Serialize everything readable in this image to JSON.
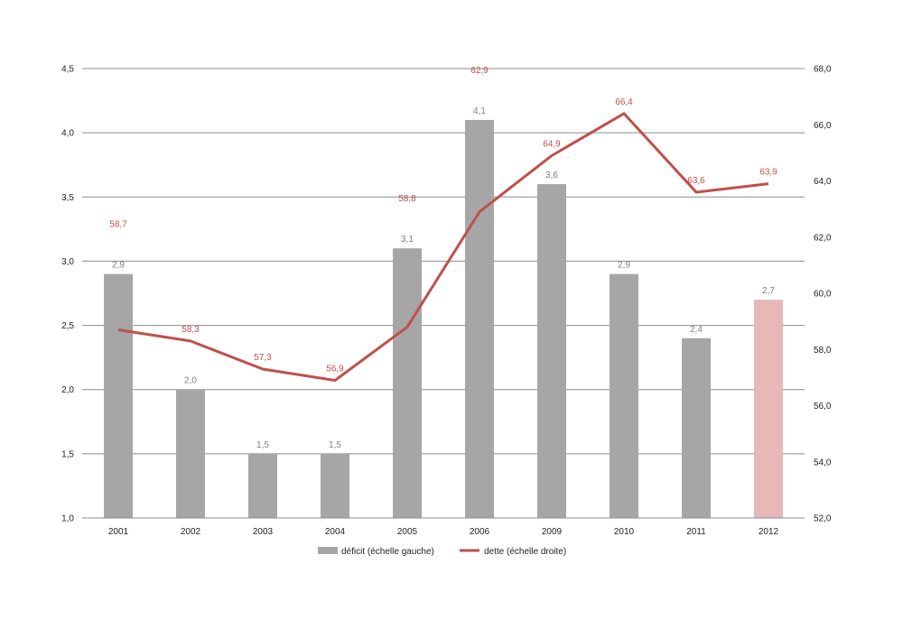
{
  "chart_data": {
    "type": "bar",
    "categories": [
      "2001",
      "2002",
      "2003",
      "2004",
      "2005",
      "2006",
      "2009",
      "2010",
      "2011",
      "2012"
    ],
    "series": [
      {
        "name": "déficit (échelle gauche)",
        "type": "bar",
        "axis": "left",
        "values": [
          2.9,
          2.0,
          1.5,
          1.5,
          3.1,
          4.1,
          3.6,
          2.9,
          2.4,
          2.7
        ],
        "labels": [
          "2,9",
          "2,0",
          "1,5",
          "1,5",
          "3,1",
          "4,1",
          "3,6",
          "2,9",
          "2,4",
          "2,7"
        ],
        "color": "#a6a6a6",
        "highlight_color": "#e6b8b7",
        "highlight_index": 9
      },
      {
        "name": "dette (échelle droite)",
        "type": "line",
        "axis": "right",
        "values": [
          58.7,
          58.3,
          57.3,
          56.9,
          58.8,
          62.9,
          64.9,
          66.4,
          63.6,
          63.9
        ],
        "labels": [
          "58,7",
          "58,3",
          "57,3",
          "56,9",
          "58,8",
          "62,9",
          "64,9",
          "66,4",
          "63,6",
          "63,9"
        ],
        "color": "#c0504d"
      }
    ],
    "y_left": {
      "range": [
        1.0,
        4.5
      ],
      "ticks": [
        1.0,
        1.5,
        2.0,
        2.5,
        3.0,
        3.5,
        4.0,
        4.5
      ],
      "tick_labels": [
        "1,0",
        "1,5",
        "2,0",
        "2,5",
        "3,0",
        "3,5",
        "4,0",
        "4,5"
      ]
    },
    "y_right": {
      "range": [
        52.0,
        68.0
      ],
      "ticks": [
        52,
        54,
        56,
        58,
        60,
        62,
        64,
        66,
        68
      ],
      "tick_labels": [
        "52,0",
        "54,0",
        "56,0",
        "58,0",
        "60,0",
        "62,0",
        "64,0",
        "66,0",
        "68,0"
      ]
    },
    "title": "",
    "xlabel": "",
    "ylabel": "",
    "grid": true,
    "legend_position": "bottom"
  }
}
